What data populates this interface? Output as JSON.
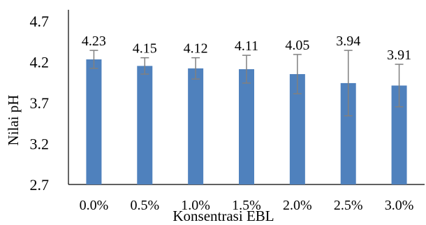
{
  "chart_data": {
    "type": "bar",
    "categories": [
      "0.0%",
      "0.5%",
      "1.0%",
      "1.5%",
      "2.0%",
      "2.5%",
      "3.0%"
    ],
    "values": [
      4.23,
      4.15,
      4.12,
      4.11,
      4.05,
      3.94,
      3.91
    ],
    "error_high": [
      4.34,
      4.25,
      4.25,
      4.28,
      4.29,
      4.34,
      4.17
    ],
    "error_low": [
      4.12,
      4.05,
      3.99,
      3.94,
      3.81,
      3.54,
      3.65
    ],
    "data_labels": [
      "4.23",
      "4.15",
      "4.12",
      "4.11",
      "4.05",
      "3.94",
      "3.91"
    ],
    "y_ticks": [
      "2.7",
      "3.2",
      "3.7",
      "4.2",
      "4.7"
    ],
    "y_tick_values": [
      2.7,
      3.2,
      3.7,
      4.2,
      4.7
    ],
    "ylim": [
      2.7,
      4.7
    ],
    "xlabel": "Konsentrasi EBL",
    "ylabel": "Nilai pH",
    "grid": false,
    "legend": "none",
    "bar_color": "#4f81bd",
    "error_color": "#808080"
  }
}
